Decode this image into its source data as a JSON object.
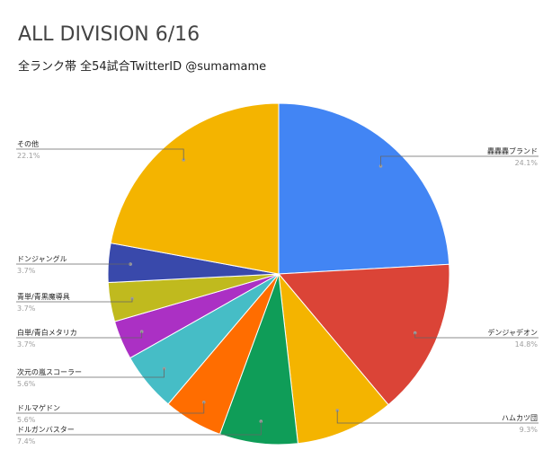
{
  "chart_data": {
    "type": "pie",
    "title": "ALL DIVISION 6/16",
    "subtitle": "全ランク帯 全54試合TwitterID @sumamame",
    "slices": [
      {
        "label": "轟轟轟ブランド",
        "percent_label": "24.1%",
        "value": 24.1,
        "color": "#4285f4"
      },
      {
        "label": "デンジャデオン",
        "percent_label": "14.8%",
        "value": 14.8,
        "color": "#db4437"
      },
      {
        "label": "ハムカツ団",
        "percent_label": "9.3%",
        "value": 9.3,
        "color": "#f4b400"
      },
      {
        "label": "ドルガンバスター",
        "percent_label": "7.4%",
        "value": 7.4,
        "color": "#0f9d58"
      },
      {
        "label": "ドルマゲドン",
        "percent_label": "5.6%",
        "value": 5.6,
        "color": "#ff6d00"
      },
      {
        "label": "次元の嵐スコーラー",
        "percent_label": "5.6%",
        "value": 5.6,
        "color": "#46bdc6"
      },
      {
        "label": "白単/青白メタリカ",
        "percent_label": "3.7%",
        "value": 3.7,
        "color": "#ab30c4"
      },
      {
        "label": "青単/青黒魔導具",
        "percent_label": "3.7%",
        "value": 3.7,
        "color": "#c0ba1e"
      },
      {
        "label": "ドンジャングル",
        "percent_label": "3.7%",
        "value": 3.7,
        "color": "#3949ab"
      },
      {
        "label": "その他",
        "percent_label": "22.1%",
        "value": 22.1,
        "color": "#f4b400"
      }
    ],
    "legend": "none"
  }
}
